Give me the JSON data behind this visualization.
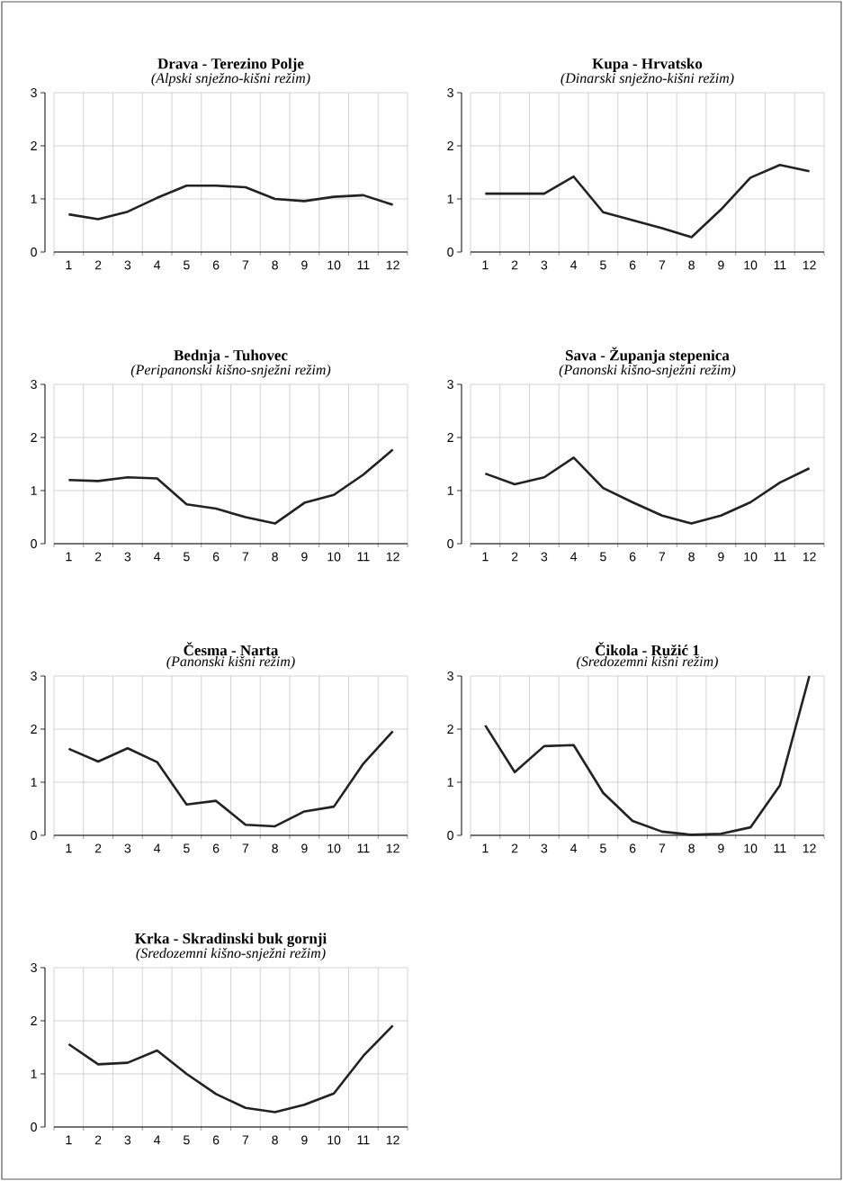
{
  "chart_data": [
    {
      "type": "line",
      "title": "Drava - Terezino Polje",
      "subtitle": "(Alpski snježno-kišni režim)",
      "categories": [
        "1",
        "2",
        "3",
        "4",
        "5",
        "6",
        "7",
        "8",
        "9",
        "10",
        "11",
        "12"
      ],
      "ylim": [
        0,
        3
      ],
      "yticks": [
        0,
        1,
        2,
        3
      ],
      "grid": true,
      "series": [
        {
          "color": "#222222",
          "values": [
            0.71,
            0.62,
            0.76,
            1.02,
            1.25,
            1.25,
            1.22,
            1.0,
            0.96,
            1.04,
            1.07,
            0.89
          ]
        }
      ]
    },
    {
      "type": "line",
      "title": "Kupa - Hrvatsko",
      "subtitle": "(Dinarski snježno-kišni režim)",
      "categories": [
        "1",
        "2",
        "3",
        "4",
        "5",
        "6",
        "7",
        "8",
        "9",
        "10",
        "11",
        "12"
      ],
      "ylim": [
        0,
        3
      ],
      "yticks": [
        0,
        1,
        2,
        3
      ],
      "grid": true,
      "series": [
        {
          "color": "#222222",
          "values": [
            1.1,
            1.1,
            1.1,
            1.42,
            0.75,
            0.6,
            0.45,
            0.28,
            0.8,
            1.4,
            1.64,
            1.52
          ]
        }
      ]
    },
    {
      "type": "line",
      "title": "Bednja - Tuhovec",
      "subtitle": "(Peripanonski kišno-snježni režim)",
      "categories": [
        "1",
        "2",
        "3",
        "4",
        "5",
        "6",
        "7",
        "8",
        "9",
        "10",
        "11",
        "12"
      ],
      "ylim": [
        0,
        3
      ],
      "yticks": [
        0,
        1,
        2,
        3
      ],
      "grid": true,
      "series": [
        {
          "color": "#222222",
          "values": [
            1.2,
            1.18,
            1.25,
            1.23,
            0.74,
            0.66,
            0.5,
            0.38,
            0.77,
            0.92,
            1.3,
            1.77
          ]
        }
      ]
    },
    {
      "type": "line",
      "title": "Sava - Županja stepenica",
      "subtitle": "(Panonski kišno-snježni režim)",
      "categories": [
        "1",
        "2",
        "3",
        "4",
        "5",
        "6",
        "7",
        "8",
        "9",
        "10",
        "11",
        "12"
      ],
      "ylim": [
        0,
        3
      ],
      "yticks": [
        0,
        1,
        2,
        3
      ],
      "grid": true,
      "series": [
        {
          "color": "#222222",
          "values": [
            1.32,
            1.12,
            1.25,
            1.62,
            1.05,
            0.78,
            0.53,
            0.38,
            0.53,
            0.78,
            1.15,
            1.42
          ]
        }
      ]
    },
    {
      "type": "line",
      "title": "Česma - Narta",
      "subtitle": "(Panonski kišni režim)",
      "categories": [
        "1",
        "2",
        "3",
        "4",
        "5",
        "6",
        "7",
        "8",
        "9",
        "10",
        "11",
        "12"
      ],
      "ylim": [
        0,
        3
      ],
      "yticks": [
        0,
        1,
        2,
        3
      ],
      "grid": true,
      "series": [
        {
          "color": "#222222",
          "values": [
            1.63,
            1.39,
            1.64,
            1.38,
            0.58,
            0.65,
            0.2,
            0.17,
            0.45,
            0.54,
            1.35,
            1.96
          ]
        }
      ]
    },
    {
      "type": "line",
      "title": "Čikola - Ružić 1",
      "subtitle": "(Sredozemni kišni režim)",
      "categories": [
        "1",
        "2",
        "3",
        "4",
        "5",
        "6",
        "7",
        "8",
        "9",
        "10",
        "11",
        "12"
      ],
      "ylim": [
        0,
        3
      ],
      "yticks": [
        0,
        1,
        2,
        3
      ],
      "grid": true,
      "series": [
        {
          "color": "#222222",
          "values": [
            2.07,
            1.19,
            1.68,
            1.7,
            0.8,
            0.27,
            0.07,
            0.01,
            0.03,
            0.15,
            0.94,
            3.0
          ]
        }
      ]
    },
    {
      "type": "line",
      "title": "Krka - Skradinski buk gornji",
      "subtitle": "(Sredozemni kišno-snježni režim)",
      "categories": [
        "1",
        "2",
        "3",
        "4",
        "5",
        "6",
        "7",
        "8",
        "9",
        "10",
        "11",
        "12"
      ],
      "ylim": [
        0,
        3
      ],
      "yticks": [
        0,
        1,
        2,
        3
      ],
      "grid": true,
      "series": [
        {
          "color": "#222222",
          "values": [
            1.56,
            1.18,
            1.21,
            1.44,
            1.0,
            0.62,
            0.36,
            0.28,
            0.42,
            0.63,
            1.34,
            1.91
          ]
        }
      ]
    }
  ]
}
